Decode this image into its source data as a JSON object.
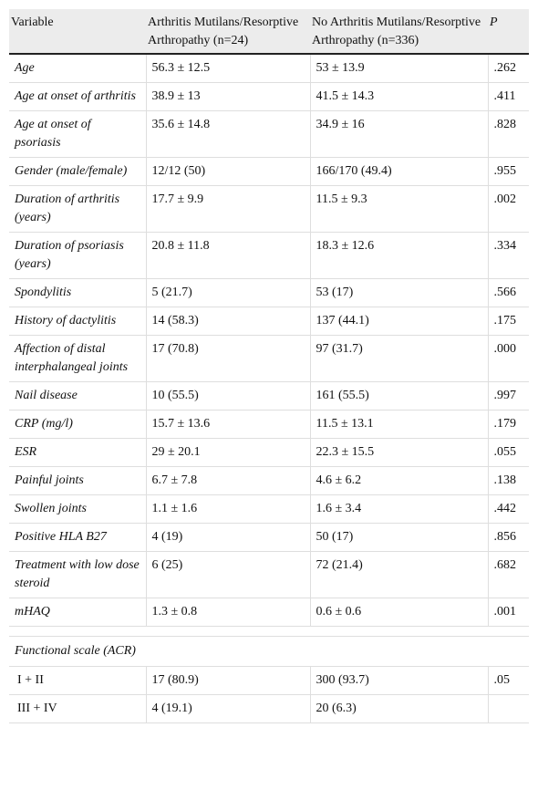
{
  "table": {
    "header": [
      "Variable",
      "Arthritis Mutilans/Resorptive Arthropathy (n=24)",
      "No Arthritis Mutilans/Resorptive Arthropathy (n=336)",
      "P"
    ],
    "rows": [
      [
        "Age",
        "56.3 ± 12.5",
        "53 ± 13.9",
        ".262"
      ],
      [
        "Age at onset of arthritis",
        "38.9 ± 13",
        "41.5 ± 14.3",
        ".411"
      ],
      [
        "Age at onset of psoriasis",
        "35.6 ± 14.8",
        "34.9 ± 16",
        ".828"
      ],
      [
        "Gender (male/female)",
        "12/12 (50)",
        "166/170 (49.4)",
        ".955"
      ],
      [
        "Duration of arthritis (years)",
        "17.7 ± 9.9",
        "11.5 ± 9.3",
        ".002"
      ],
      [
        "Duration of psoriasis (years)",
        "20.8 ± 11.8",
        "18.3 ± 12.6",
        ".334"
      ],
      [
        "Spondylitis",
        "5 (21.7)",
        "53 (17)",
        ".566"
      ],
      [
        "History of dactylitis",
        "14 (58.3)",
        "137 (44.1)",
        ".175"
      ],
      [
        "Affection of distal interphalangeal joints",
        "17 (70.8)",
        "97 (31.7)",
        ".000"
      ],
      [
        "Nail disease",
        "10 (55.5)",
        "161 (55.5)",
        ".997"
      ],
      [
        "CRP (mg/l)",
        "15.7 ± 13.6",
        "11.5 ± 13.1",
        ".179"
      ],
      [
        "ESR",
        "29 ± 20.1",
        "22.3 ± 15.5",
        ".055"
      ],
      [
        "Painful joints",
        "6.7 ± 7.8",
        "4.6 ± 6.2",
        ".138"
      ],
      [
        "Swollen joints",
        "1.1 ± 1.6",
        "1.6 ± 3.4",
        ".442"
      ],
      [
        "Positive HLA B27",
        "4 (19)",
        "50 (17)",
        ".856"
      ],
      [
        "Treatment with low dose steroid",
        "6 (25)",
        "72 (21.4)",
        ".682"
      ],
      [
        "mHAQ",
        "1.3 ± 0.8",
        "0.6 ± 0.6",
        ".001"
      ]
    ],
    "section": {
      "title": "Functional scale (ACR)",
      "rows": [
        [
          "I + II",
          "17 (80.9)",
          "300 (93.7)",
          ".05"
        ],
        [
          "III + IV",
          "4 (19.1)",
          "20 (6.3)",
          ""
        ]
      ]
    }
  }
}
